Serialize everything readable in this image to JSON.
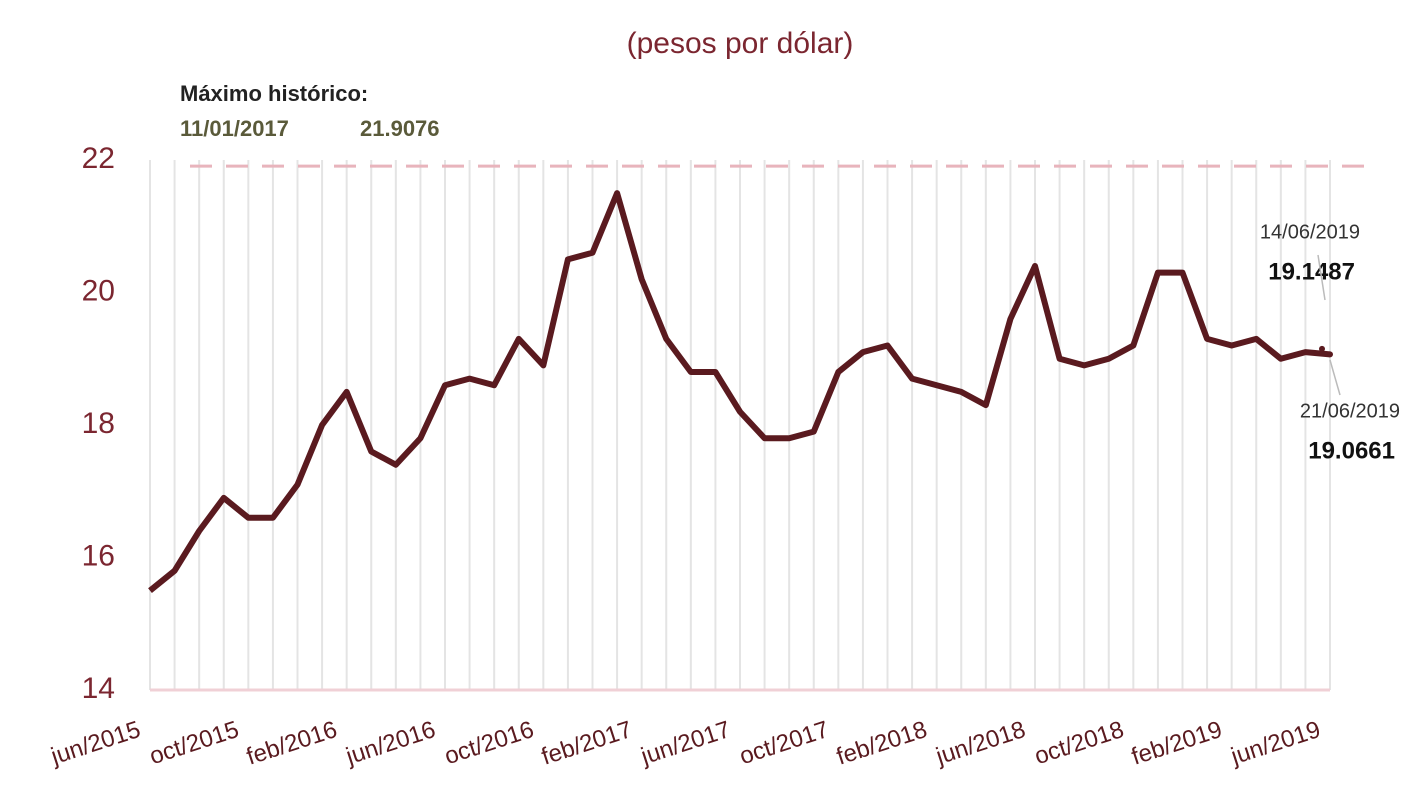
{
  "chart_data": {
    "type": "line",
    "subtitle": "(pesos por dólar)",
    "categories": [
      "jun/2015",
      null,
      null,
      null,
      "oct/2015",
      null,
      null,
      null,
      "feb/2016",
      null,
      null,
      null,
      "jun/2016",
      null,
      null,
      null,
      "oct/2016",
      null,
      null,
      null,
      "feb/2017",
      null,
      null,
      null,
      "jun/2017",
      null,
      null,
      null,
      "oct/2017",
      null,
      null,
      null,
      "feb/2018",
      null,
      null,
      null,
      "jun/2018",
      null,
      null,
      null,
      "oct/2018",
      null,
      null,
      null,
      "feb/2019",
      null,
      null,
      null,
      "jun/2019"
    ],
    "series": [
      {
        "color": "#5a1a1f",
        "values": [
          15.5,
          15.8,
          16.4,
          16.9,
          16.6,
          16.6,
          17.1,
          18.0,
          18.5,
          17.6,
          17.4,
          17.8,
          18.6,
          18.7,
          18.6,
          19.3,
          18.9,
          20.5,
          20.6,
          21.5,
          20.2,
          19.3,
          18.8,
          18.8,
          18.2,
          17.8,
          17.8,
          17.9,
          18.8,
          19.1,
          19.2,
          18.7,
          18.6,
          18.5,
          18.3,
          19.6,
          20.4,
          19.0,
          18.9,
          19.0,
          19.2,
          20.3,
          20.3,
          19.3,
          19.2,
          19.3,
          19.0,
          19.1,
          19.0661
        ]
      }
    ],
    "ylim": [
      14,
      22
    ],
    "yticks": [
      14,
      16,
      18,
      20,
      22
    ],
    "grid": true,
    "max_line": {
      "label": "Máximo histórico:",
      "date": "11/01/2017",
      "value": 21.9076,
      "color": "#e8b4bc"
    },
    "annotations": [
      {
        "date": "14/06/2019",
        "value": 19.1487
      },
      {
        "date": "21/06/2019",
        "value": 19.0661
      }
    ]
  }
}
